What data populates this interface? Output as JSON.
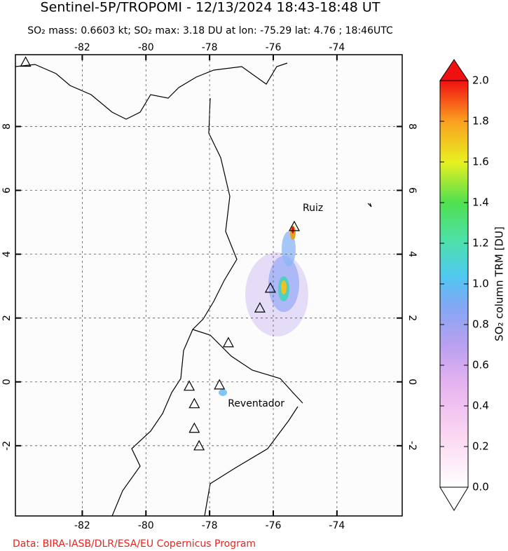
{
  "title": "Sentinel-5P/TROPOMI - 12/13/2024 18:43-18:48 UT",
  "subtitle": "SO₂ mass: 0.6603 kt; SO₂ max: 3.18 DU at lon: -75.29 lat: 4.76 ; 18:46UTC",
  "map": {
    "xlim": [
      -84.1,
      -71.95
    ],
    "ylim": [
      -4.2,
      10.25
    ],
    "xticks": [
      -82,
      -80,
      -78,
      -76,
      -74
    ],
    "yticks": [
      -2,
      0,
      2,
      4,
      6,
      8
    ],
    "volcanoes": [
      {
        "lon": -83.78,
        "lat": 10.02
      },
      {
        "lon": -75.34,
        "lat": 4.87,
        "label": "Ruiz"
      },
      {
        "lon": -76.09,
        "lat": 2.94
      },
      {
        "lon": -76.42,
        "lat": 2.32
      },
      {
        "lon": -77.41,
        "lat": 1.23
      },
      {
        "lon": -77.69,
        "lat": -0.09,
        "label": "Reventador"
      },
      {
        "lon": -78.64,
        "lat": -0.13
      },
      {
        "lon": -78.48,
        "lat": -0.68
      },
      {
        "lon": -78.48,
        "lat": -1.45
      },
      {
        "lon": -78.33,
        "lat": -2.0
      }
    ]
  },
  "colorbar": {
    "lim": [
      0,
      2
    ],
    "ticks": [
      {
        "value": 0,
        "label": "0.0"
      },
      {
        "value": 0.2,
        "label": "0.2"
      },
      {
        "value": 0.4,
        "label": "0.4"
      },
      {
        "value": 0.6,
        "label": "0.6"
      },
      {
        "value": 0.8,
        "label": "0.8"
      },
      {
        "value": 1,
        "label": "1.0"
      },
      {
        "value": 1.2,
        "label": "1.2"
      },
      {
        "value": 1.4,
        "label": "1.4"
      },
      {
        "value": 1.6,
        "label": "1.6"
      },
      {
        "value": 1.8,
        "label": "1.8"
      },
      {
        "value": 2,
        "label": "2.0"
      }
    ],
    "label": "SO₂ column TRM [DU]"
  },
  "footer": "Data: BIRA-IASB/DLR/ESA/EU Copernicus Program"
}
